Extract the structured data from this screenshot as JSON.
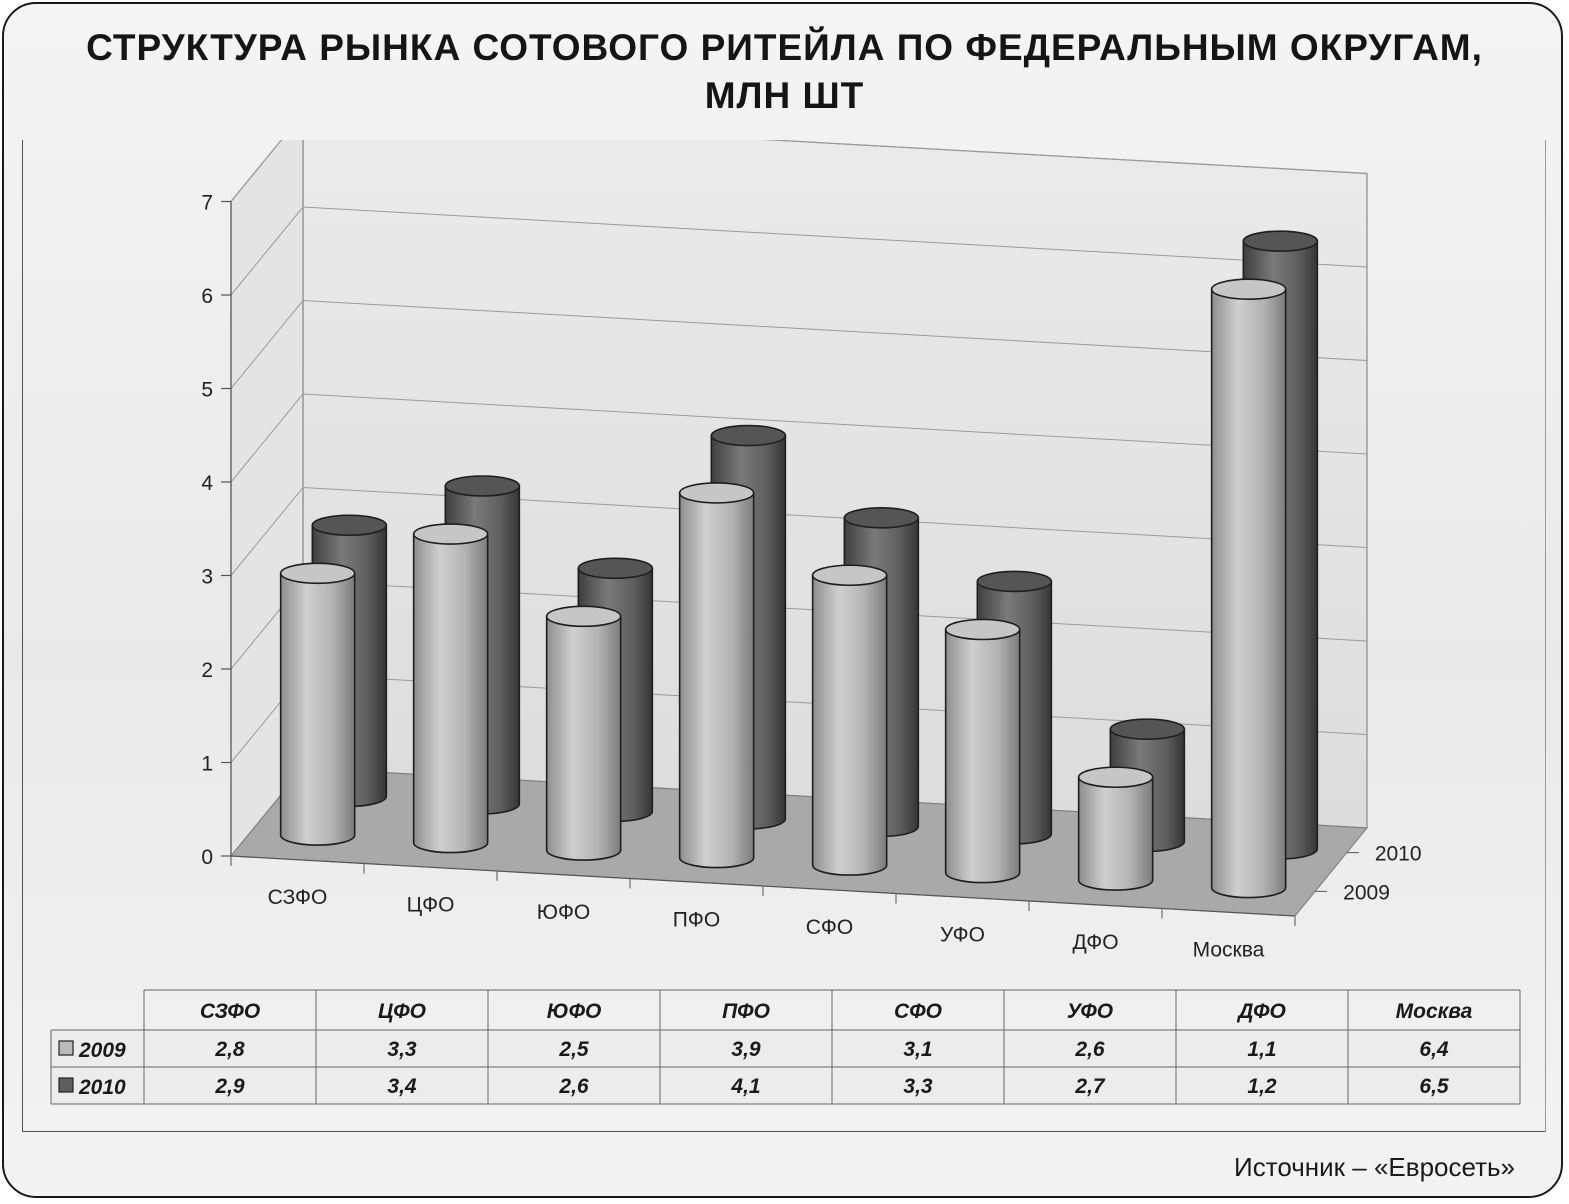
{
  "title_line1": "СТРУКТУРА РЫНКА СОТОВОГО РИТЕЙЛА ПО ФЕДЕРАЛЬНЫМ ОКРУГАМ,",
  "title_line2": "МЛН ШТ",
  "source": "Источник – «Евросеть»",
  "colors": {
    "series_2009": "#b9b9b9",
    "series_2010": "#5f5f5f",
    "wall": "#e2e2e2",
    "floor": "#a9a9a9",
    "grid": "#9a9a9a"
  },
  "chart_data": {
    "type": "bar",
    "style": "3d-cylinder",
    "title": "СТРУКТУРА РЫНКА СОТОВОГО РИТЕЙЛА ПО ФЕДЕРАЛЬНЫМ ОКРУГАМ, МЛН ШТ",
    "categories": [
      "СЗФО",
      "ЦФО",
      "ЮФО",
      "ПФО",
      "СФО",
      "УФО",
      "ДФО",
      "Москва"
    ],
    "series": [
      {
        "name": "2009",
        "values": [
          "2,8",
          "3,3",
          "2,5",
          "3,9",
          "3,1",
          "2,6",
          "1,1",
          "6,4"
        ]
      },
      {
        "name": "2010",
        "values": [
          "2,9",
          "3,4",
          "2,6",
          "4,1",
          "3,3",
          "2,7",
          "1,2",
          "6,5"
        ]
      }
    ],
    "y_ticks": [
      "0",
      "1",
      "2",
      "3",
      "4",
      "5",
      "6",
      "7"
    ],
    "ylim": [
      0,
      7
    ],
    "depth_labels": [
      "2010",
      "2009"
    ],
    "gridlines": true,
    "data_table": true
  }
}
